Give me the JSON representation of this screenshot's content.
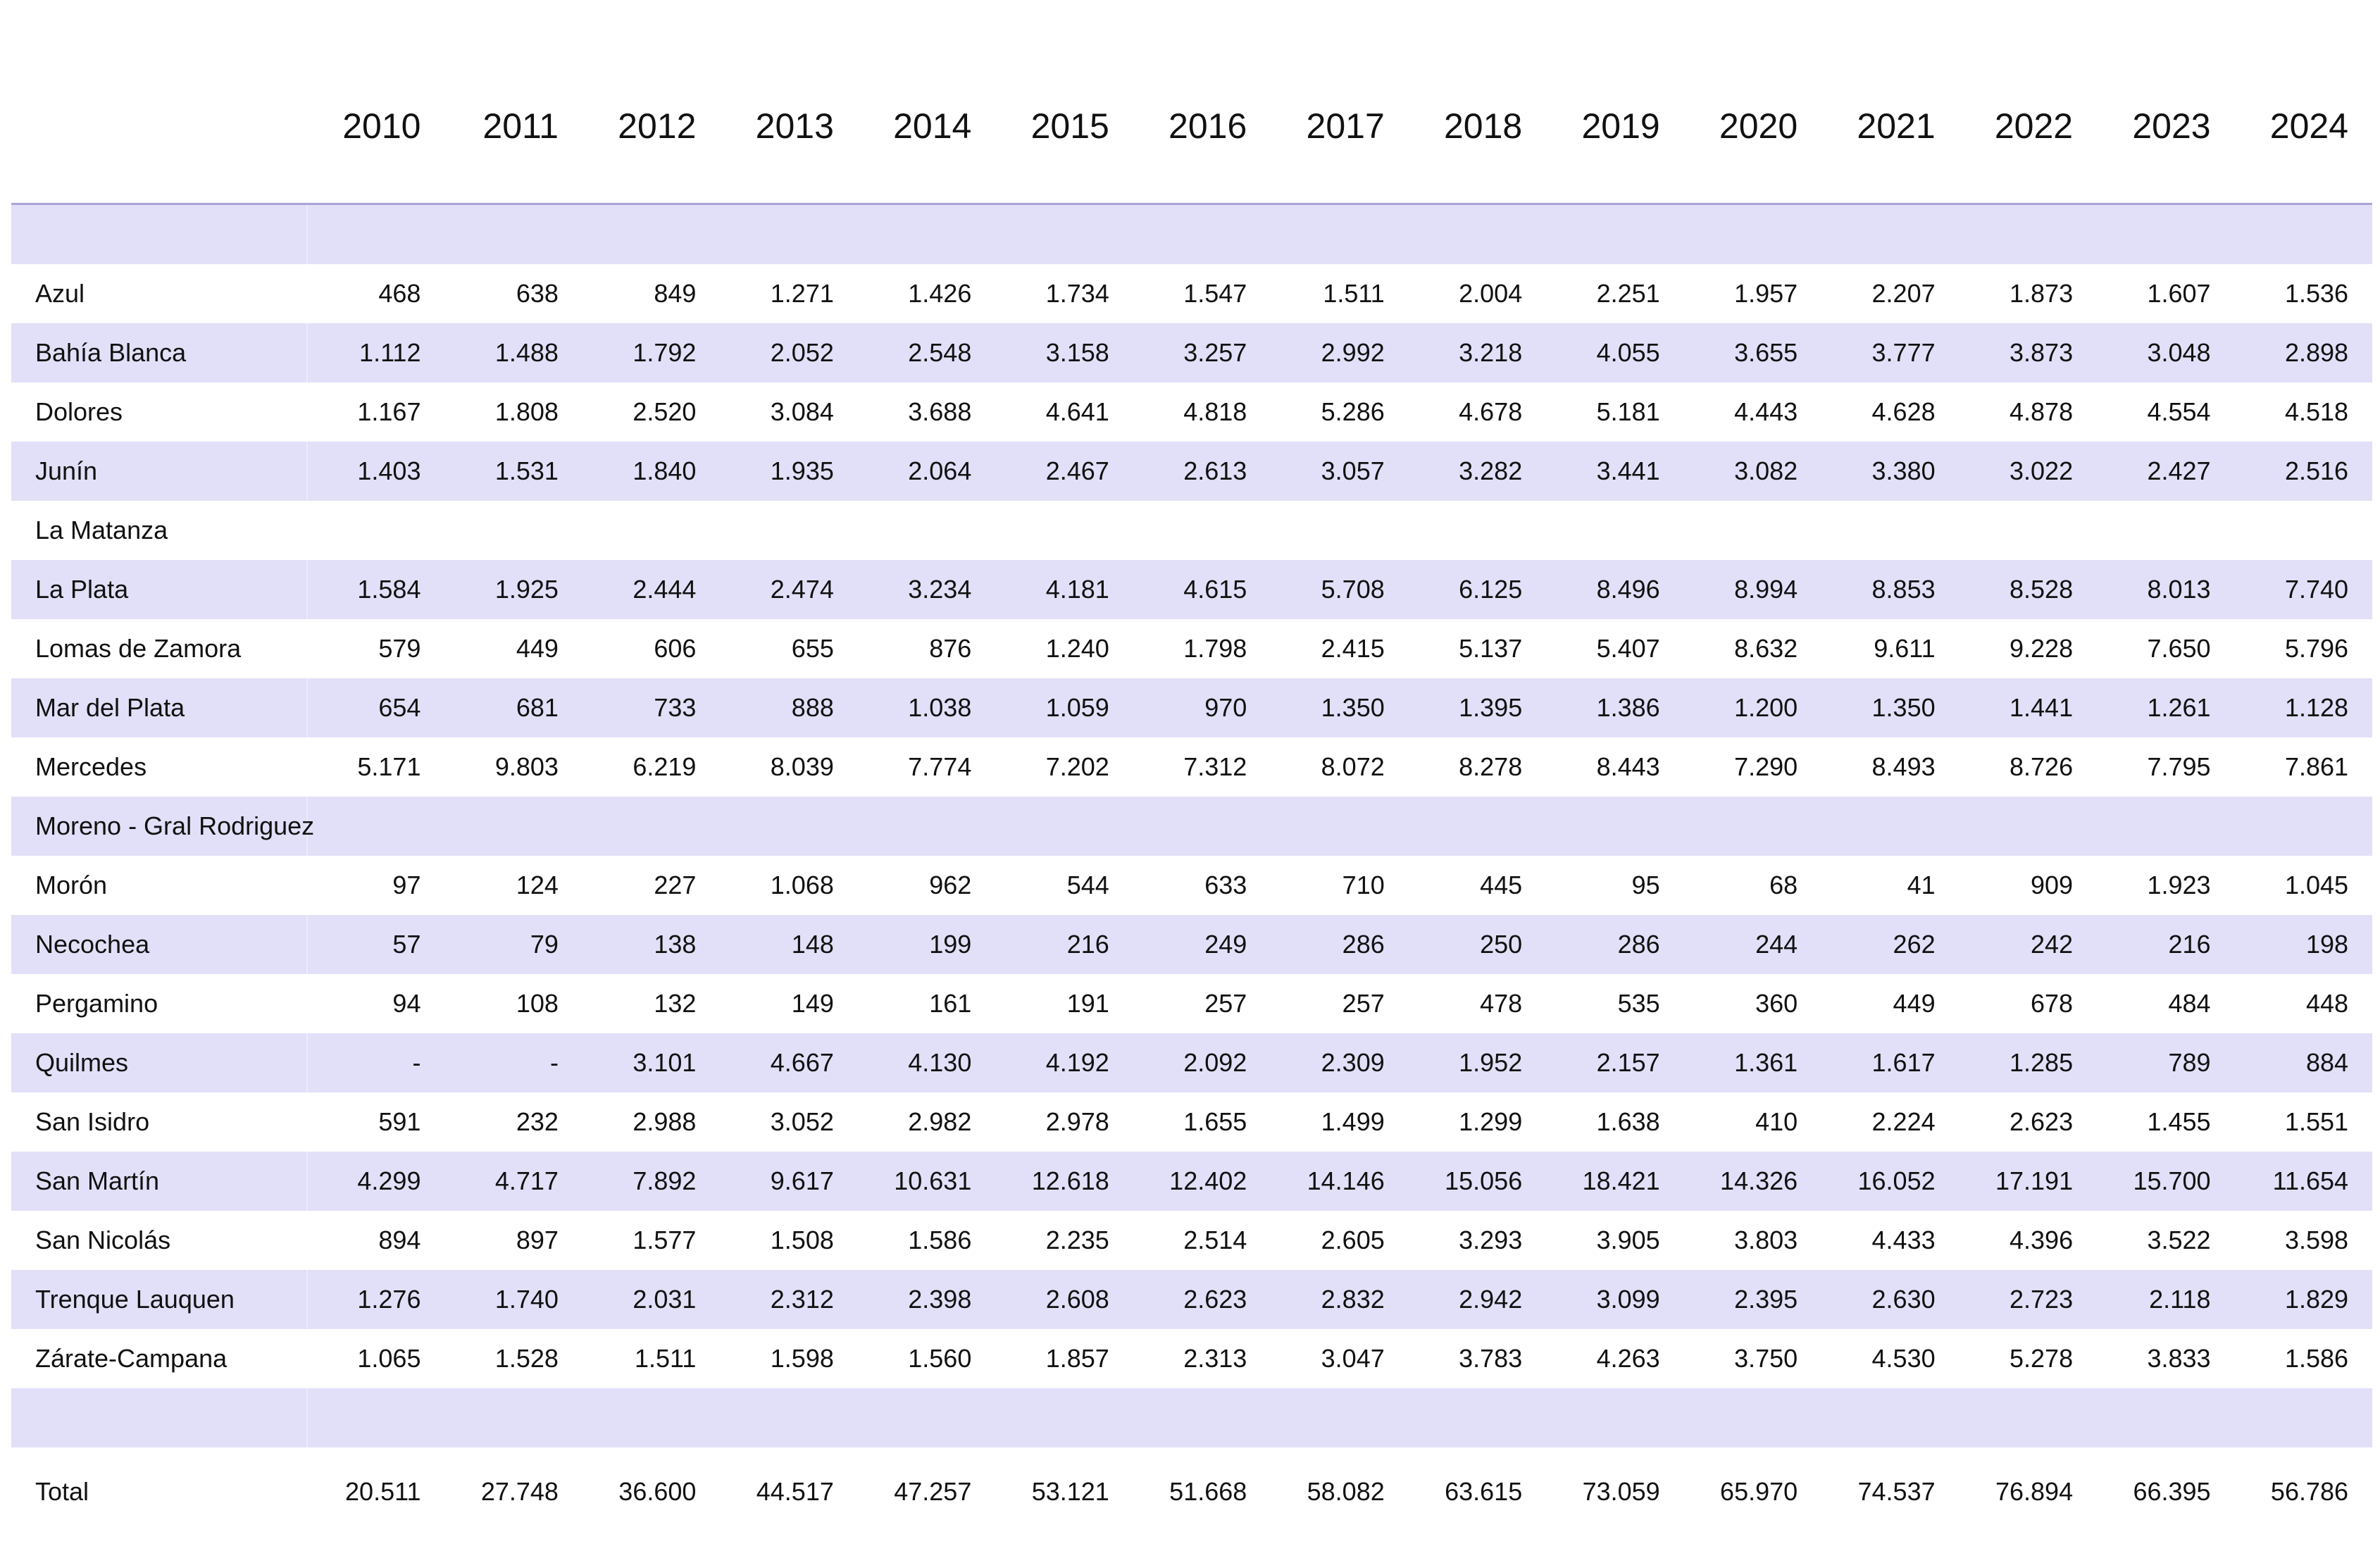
{
  "table": {
    "years": [
      "2010",
      "2011",
      "2012",
      "2013",
      "2014",
      "2015",
      "2016",
      "2017",
      "2018",
      "2019",
      "2020",
      "2021",
      "2022",
      "2023",
      "2024"
    ],
    "rows": [
      {
        "name": "Azul",
        "values": [
          "468",
          "638",
          "849",
          "1.271",
          "1.426",
          "1.734",
          "1.547",
          "1.511",
          "2.004",
          "2.251",
          "1.957",
          "2.207",
          "1.873",
          "1.607",
          "1.536"
        ]
      },
      {
        "name": "Bahía Blanca",
        "values": [
          "1.112",
          "1.488",
          "1.792",
          "2.052",
          "2.548",
          "3.158",
          "3.257",
          "2.992",
          "3.218",
          "4.055",
          "3.655",
          "3.777",
          "3.873",
          "3.048",
          "2.898"
        ]
      },
      {
        "name": "Dolores",
        "values": [
          "1.167",
          "1.808",
          "2.520",
          "3.084",
          "3.688",
          "4.641",
          "4.818",
          "5.286",
          "4.678",
          "5.181",
          "4.443",
          "4.628",
          "4.878",
          "4.554",
          "4.518"
        ]
      },
      {
        "name": "Junín",
        "values": [
          "1.403",
          "1.531",
          "1.840",
          "1.935",
          "2.064",
          "2.467",
          "2.613",
          "3.057",
          "3.282",
          "3.441",
          "3.082",
          "3.380",
          "3.022",
          "2.427",
          "2.516"
        ]
      },
      {
        "name": "La Matanza",
        "values": [
          "",
          "",
          "",
          "",
          "",
          "",
          "",
          "",
          "",
          "",
          "",
          "",
          "",
          "",
          ""
        ]
      },
      {
        "name": "La Plata",
        "values": [
          "1.584",
          "1.925",
          "2.444",
          "2.474",
          "3.234",
          "4.181",
          "4.615",
          "5.708",
          "6.125",
          "8.496",
          "8.994",
          "8.853",
          "8.528",
          "8.013",
          "7.740"
        ]
      },
      {
        "name": "Lomas de Zamora",
        "values": [
          "579",
          "449",
          "606",
          "655",
          "876",
          "1.240",
          "1.798",
          "2.415",
          "5.137",
          "5.407",
          "8.632",
          "9.611",
          "9.228",
          "7.650",
          "5.796"
        ]
      },
      {
        "name": "Mar del Plata",
        "values": [
          "654",
          "681",
          "733",
          "888",
          "1.038",
          "1.059",
          "970",
          "1.350",
          "1.395",
          "1.386",
          "1.200",
          "1.350",
          "1.441",
          "1.261",
          "1.128"
        ]
      },
      {
        "name": "Mercedes",
        "values": [
          "5.171",
          "9.803",
          "6.219",
          "8.039",
          "7.774",
          "7.202",
          "7.312",
          "8.072",
          "8.278",
          "8.443",
          "7.290",
          "8.493",
          "8.726",
          "7.795",
          "7.861"
        ]
      },
      {
        "name": "Moreno - Gral Rodriguez",
        "values": [
          "",
          "",
          "",
          "",
          "",
          "",
          "",
          "",
          "",
          "",
          "",
          "",
          "",
          "",
          ""
        ]
      },
      {
        "name": "Morón",
        "values": [
          "97",
          "124",
          "227",
          "1.068",
          "962",
          "544",
          "633",
          "710",
          "445",
          "95",
          "68",
          "41",
          "909",
          "1.923",
          "1.045"
        ]
      },
      {
        "name": "Necochea",
        "values": [
          "57",
          "79",
          "138",
          "148",
          "199",
          "216",
          "249",
          "286",
          "250",
          "286",
          "244",
          "262",
          "242",
          "216",
          "198"
        ]
      },
      {
        "name": "Pergamino",
        "values": [
          "94",
          "108",
          "132",
          "149",
          "161",
          "191",
          "257",
          "257",
          "478",
          "535",
          "360",
          "449",
          "678",
          "484",
          "448"
        ]
      },
      {
        "name": "Quilmes",
        "values": [
          "-",
          "-",
          "3.101",
          "4.667",
          "4.130",
          "4.192",
          "2.092",
          "2.309",
          "1.952",
          "2.157",
          "1.361",
          "1.617",
          "1.285",
          "789",
          "884"
        ]
      },
      {
        "name": "San Isidro",
        "values": [
          "591",
          "232",
          "2.988",
          "3.052",
          "2.982",
          "2.978",
          "1.655",
          "1.499",
          "1.299",
          "1.638",
          "410",
          "2.224",
          "2.623",
          "1.455",
          "1.551"
        ]
      },
      {
        "name": "San Martín",
        "values": [
          "4.299",
          "4.717",
          "7.892",
          "9.617",
          "10.631",
          "12.618",
          "12.402",
          "14.146",
          "15.056",
          "18.421",
          "14.326",
          "16.052",
          "17.191",
          "15.700",
          "11.654"
        ]
      },
      {
        "name": "San Nicolás",
        "values": [
          "894",
          "897",
          "1.577",
          "1.508",
          "1.586",
          "2.235",
          "2.514",
          "2.605",
          "3.293",
          "3.905",
          "3.803",
          "4.433",
          "4.396",
          "3.522",
          "3.598"
        ]
      },
      {
        "name": "Trenque Lauquen",
        "values": [
          "1.276",
          "1.740",
          "2.031",
          "2.312",
          "2.398",
          "2.608",
          "2.623",
          "2.832",
          "2.942",
          "3.099",
          "2.395",
          "2.630",
          "2.723",
          "2.118",
          "1.829"
        ]
      },
      {
        "name": "Zárate-Campana",
        "values": [
          "1.065",
          "1.528",
          "1.511",
          "1.598",
          "1.560",
          "1.857",
          "2.313",
          "3.047",
          "3.783",
          "4.263",
          "3.750",
          "4.530",
          "5.278",
          "3.833",
          "1.586"
        ]
      }
    ],
    "total": {
      "name": "Total",
      "values": [
        "20.511",
        "27.748",
        "36.600",
        "44.517",
        "47.257",
        "53.121",
        "51.668",
        "58.082",
        "63.615",
        "73.059",
        "65.970",
        "74.537",
        "76.894",
        "66.395",
        "56.786"
      ]
    }
  },
  "colors": {
    "band": "#e2e0f8",
    "rule": "#a9a4d8"
  }
}
